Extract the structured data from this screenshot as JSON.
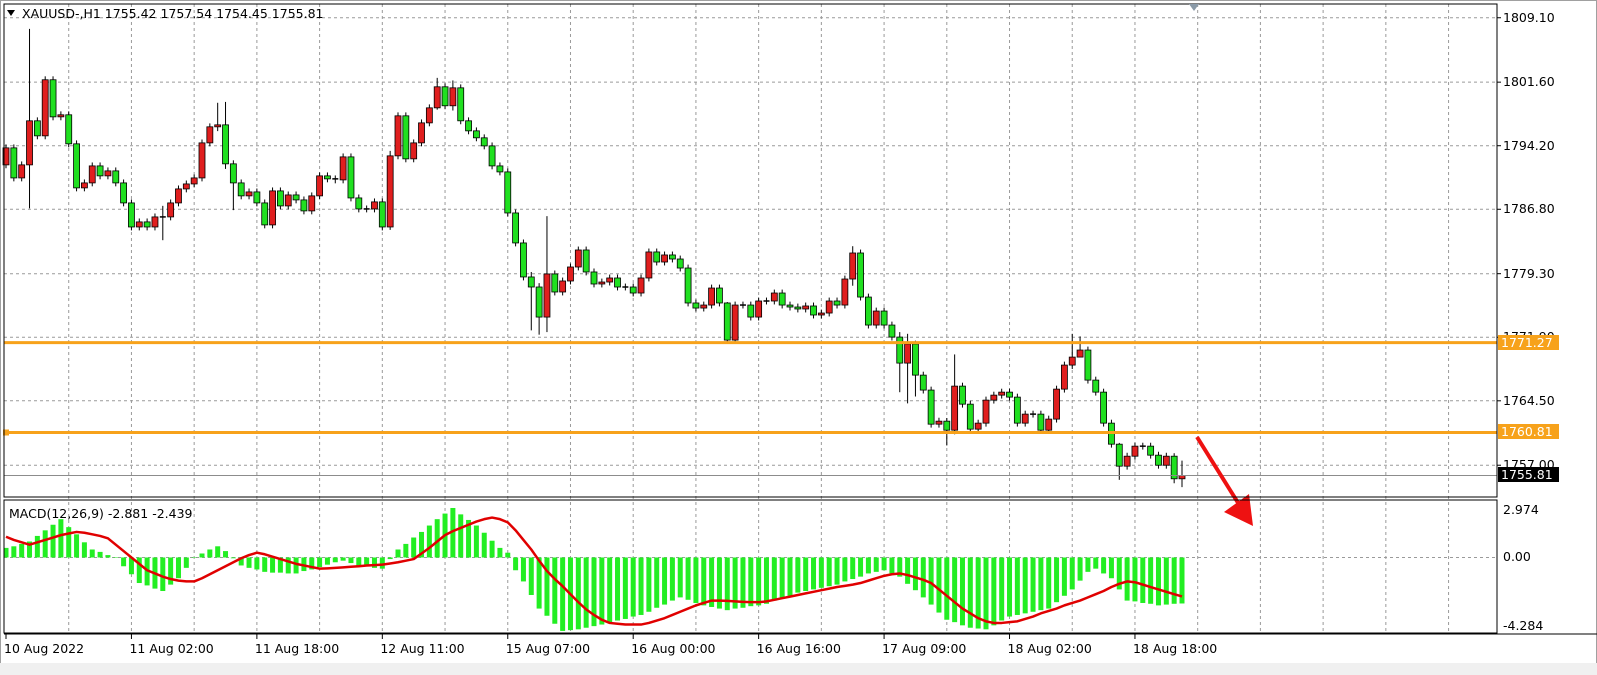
{
  "header": {
    "symbol_period": "XAUUSD-,H1",
    "ohlc_readout": "1755.42 1757.54 1754.45 1755.81"
  },
  "macd": {
    "title": "MACD(12,26,9)",
    "main_value": "-2.881",
    "signal_value": "-2.439"
  },
  "colors": {
    "bull_candle": "#e01e1e",
    "bear_candle": "#20e020",
    "histogram": "#22ee22",
    "signal_line": "#e00000",
    "level_line": "#f7a21b",
    "bid_tag_bg": "#000000",
    "arrow": "#ee1111"
  },
  "price_axis": [
    "1809.10",
    "1801.60",
    "1794.20",
    "1786.80",
    "1779.30",
    "1771.90",
    "1764.50",
    "1757.00"
  ],
  "macd_axis": [
    "2.974",
    "0.00",
    "-4.284"
  ],
  "time_axis": [
    "10 Aug 2022",
    "11 Aug 02:00",
    "11 Aug 18:00",
    "12 Aug 11:00",
    "15 Aug 07:00",
    "16 Aug 00:00",
    "16 Aug 16:00",
    "17 Aug 09:00",
    "18 Aug 02:00",
    "18 Aug 18:00"
  ],
  "levels": [
    {
      "label": "1771.27",
      "value": 1771.27
    },
    {
      "label": "1760.81",
      "value": 1760.81
    }
  ],
  "bid": {
    "label": "1755.81",
    "value": 1755.81
  },
  "chart_data": [
    {
      "type": "candlestick",
      "title": "XAUUSD-,H1",
      "ylim": [
        1753.3,
        1810.7
      ],
      "grid": true,
      "open_first": 1791.97,
      "close": [
        1793.95,
        1790.45,
        1791.97,
        1797.1,
        1795.35,
        1801.88,
        1797.56,
        1797.8,
        1794.42,
        1789.29,
        1789.87,
        1791.85,
        1790.69,
        1791.27,
        1789.87,
        1787.54,
        1784.74,
        1785.33,
        1784.74,
        1785.91,
        1785.91,
        1787.54,
        1789.17,
        1789.75,
        1790.45,
        1794.53,
        1796.4,
        1796.63,
        1792.09,
        1789.87,
        1788.36,
        1788.82,
        1787.54,
        1784.98,
        1788.94,
        1787.19,
        1788.47,
        1787.89,
        1786.61,
        1788.36,
        1790.69,
        1790.34,
        1790.22,
        1792.9,
        1788.12,
        1786.84,
        1786.84,
        1787.66,
        1784.74,
        1793.02,
        1797.68,
        1792.67,
        1794.53,
        1796.86,
        1798.61,
        1801.06,
        1798.85,
        1800.94,
        1797.1,
        1795.93,
        1795.12,
        1794.18,
        1791.85,
        1791.15,
        1786.37,
        1782.88,
        1778.92,
        1777.75,
        1774.25,
        1779.27,
        1777.17,
        1778.45,
        1780.08,
        1782.06,
        1779.5,
        1778.1,
        1778.33,
        1778.8,
        1777.75,
        1777.75,
        1777.05,
        1778.8,
        1781.83,
        1780.66,
        1781.48,
        1781.01,
        1779.96,
        1775.89,
        1775.3,
        1775.65,
        1777.63,
        1775.89,
        1771.57,
        1775.65,
        1775.65,
        1774.25,
        1776.12,
        1776.12,
        1777.05,
        1775.65,
        1775.42,
        1775.19,
        1775.54,
        1774.49,
        1774.72,
        1776.12,
        1775.65,
        1778.68,
        1781.71,
        1776.58,
        1773.32,
        1774.95,
        1773.32,
        1771.92,
        1768.89,
        1771.11,
        1767.49,
        1765.75,
        1761.78,
        1762.13,
        1761.08,
        1766.21,
        1764.11,
        1761.2,
        1761.9,
        1764.58,
        1765.16,
        1765.51,
        1764.93,
        1761.9,
        1762.95,
        1762.95,
        1761.08,
        1762.37,
        1765.86,
        1768.66,
        1769.59,
        1770.41,
        1766.91,
        1765.51,
        1761.9,
        1759.45,
        1756.89,
        1758.05,
        1759.22,
        1759.22,
        1758.17,
        1757.0,
        1758.05,
        1755.42,
        1755.81
      ],
      "high_low_overrides": {
        "3": [
          1807.8,
          1786.9
        ],
        "20": [
          1787.2,
          1783.2
        ],
        "27": [
          1799.2,
          1795.9
        ],
        "28": [
          1799.3,
          1791.5
        ],
        "29": [
          1792.5,
          1786.7
        ],
        "49": [
          1793.6,
          1784.4
        ],
        "55": [
          1802.1,
          1798.4
        ],
        "57": [
          1801.8,
          1798.3
        ],
        "67": [
          1779.5,
          1772.7
        ],
        "68": [
          1778.2,
          1772.2
        ],
        "69": [
          1786.0,
          1772.5
        ],
        "92": [
          1776.0,
          1771.3
        ],
        "108": [
          1782.5,
          1777.9
        ],
        "114": [
          1772.5,
          1765.5
        ],
        "115": [
          1772.3,
          1764.2
        ],
        "116": [
          1771.5,
          1765.0
        ],
        "120": [
          1762.5,
          1759.3
        ],
        "121": [
          1769.9,
          1760.6
        ],
        "136": [
          1772.3,
          1768.2
        ],
        "137": [
          1772.0,
          1769.8
        ],
        "142": [
          1759.6,
          1755.3
        ],
        "149": [
          1758.4,
          1754.9
        ],
        "150": [
          1757.54,
          1754.45
        ]
      }
    },
    {
      "type": "bar+line",
      "title": "MACD(12,26,9)",
      "ylim": [
        -4.73,
        3.6
      ],
      "series": [
        {
          "name": "MACD",
          "type": "histogram",
          "values": [
            0.6,
            0.7,
            0.85,
            1.0,
            1.35,
            1.7,
            2.05,
            2.4,
            1.9,
            1.45,
            0.95,
            0.5,
            0.35,
            0.15,
            0,
            -0.55,
            -1.05,
            -1.6,
            -1.75,
            -1.95,
            -2.1,
            -1.7,
            -1.3,
            -0.65,
            0,
            0.25,
            0.5,
            0.7,
            0.4,
            -0.05,
            -0.5,
            -0.65,
            -0.75,
            -0.9,
            -0.95,
            -0.95,
            -1.0,
            -1.0,
            -0.85,
            -0.75,
            -0.6,
            -0.45,
            -0.3,
            -0.2,
            -0.35,
            -0.5,
            -0.55,
            -0.65,
            -0.7,
            -0.1,
            0.5,
            0.85,
            1.25,
            1.6,
            2.0,
            2.4,
            2.75,
            3.1,
            2.7,
            2.35,
            2.0,
            1.55,
            1.05,
            0.6,
            0.3,
            -0.8,
            -1.5,
            -2.35,
            -3.2,
            -3.65,
            -4.15,
            -4.6,
            -4.55,
            -4.5,
            -4.4,
            -4.3,
            -4.2,
            -4.1,
            -3.95,
            -3.85,
            -3.7,
            -3.6,
            -3.4,
            -3.15,
            -2.95,
            -2.7,
            -2.5,
            -2.65,
            -2.85,
            -3.0,
            -3.1,
            -3.2,
            -3.3,
            -3.2,
            -3.15,
            -3.05,
            -3.0,
            -2.9,
            -2.7,
            -2.55,
            -2.4,
            -2.2,
            -2.1,
            -2.0,
            -1.9,
            -1.8,
            -1.7,
            -1.5,
            -1.35,
            -1.2,
            -1.0,
            -0.9,
            -0.8,
            -1.0,
            -1.2,
            -1.65,
            -2.05,
            -2.5,
            -2.95,
            -3.45,
            -3.9,
            -4.05,
            -4.25,
            -4.4,
            -4.45,
            -4.5,
            -4.25,
            -3.95,
            -3.7,
            -3.6,
            -3.5,
            -3.4,
            -3.3,
            -3.2,
            -2.8,
            -2.4,
            -2.0,
            -1.45,
            -0.9,
            -0.7,
            -1.0,
            -1.3,
            -2.0,
            -2.7,
            -2.75,
            -2.85,
            -2.9,
            -3.0,
            -2.95,
            -2.9,
            -2.881
          ]
        },
        {
          "name": "Signal",
          "type": "line",
          "values": [
            1.3,
            1.1,
            0.95,
            0.8,
            0.95,
            1.1,
            1.25,
            1.4,
            1.5,
            1.6,
            1.55,
            1.45,
            1.35,
            1.2,
            0.8,
            0.4,
            0,
            -0.4,
            -0.8,
            -1.0,
            -1.2,
            -1.35,
            -1.45,
            -1.5,
            -1.5,
            -1.3,
            -1.05,
            -0.8,
            -0.55,
            -0.3,
            -0.05,
            0.15,
            0.3,
            0.2,
            0.05,
            -0.1,
            -0.25,
            -0.4,
            -0.5,
            -0.6,
            -0.7,
            -0.68,
            -0.65,
            -0.62,
            -0.58,
            -0.55,
            -0.5,
            -0.48,
            -0.45,
            -0.38,
            -0.3,
            -0.2,
            -0.1,
            0.25,
            0.6,
            1.0,
            1.4,
            1.65,
            1.85,
            2.05,
            2.25,
            2.4,
            2.5,
            2.4,
            2.2,
            1.7,
            1.1,
            0.5,
            -0.2,
            -0.85,
            -1.35,
            -1.8,
            -2.3,
            -2.8,
            -3.25,
            -3.6,
            -3.9,
            -4.1,
            -4.15,
            -4.2,
            -4.2,
            -4.2,
            -4.1,
            -3.95,
            -3.8,
            -3.6,
            -3.4,
            -3.2,
            -3.0,
            -2.85,
            -2.7,
            -2.7,
            -2.72,
            -2.75,
            -2.78,
            -2.8,
            -2.8,
            -2.75,
            -2.65,
            -2.55,
            -2.45,
            -2.35,
            -2.25,
            -2.15,
            -2.05,
            -1.95,
            -1.85,
            -1.78,
            -1.7,
            -1.6,
            -1.45,
            -1.3,
            -1.15,
            -1.05,
            -1.0,
            -1.1,
            -1.25,
            -1.4,
            -1.6,
            -2.0,
            -2.4,
            -2.8,
            -3.2,
            -3.5,
            -3.8,
            -4.0,
            -4.1,
            -4.1,
            -4.05,
            -4.0,
            -3.85,
            -3.7,
            -3.5,
            -3.35,
            -3.2,
            -3.0,
            -2.85,
            -2.7,
            -2.5,
            -2.3,
            -2.1,
            -1.85,
            -1.65,
            -1.5,
            -1.55,
            -1.7,
            -1.85,
            -2.0,
            -2.15,
            -2.3,
            -2.439
          ]
        }
      ]
    }
  ]
}
